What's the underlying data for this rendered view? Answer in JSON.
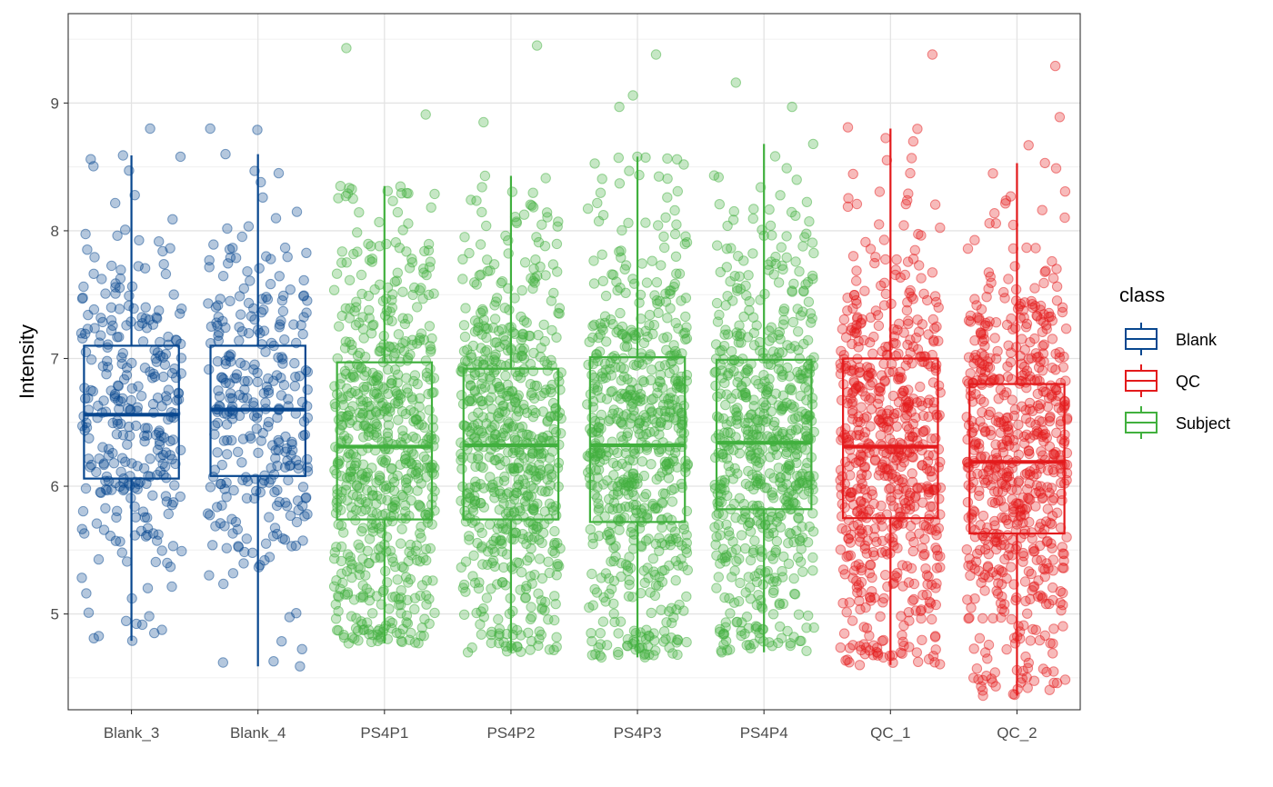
{
  "chart_data": {
    "type": "boxplot",
    "title": "",
    "xlabel": "",
    "ylabel": "Intensity",
    "ylim": [
      4.25,
      9.7
    ],
    "yticks": [
      5,
      6,
      7,
      8,
      9
    ],
    "grid": true,
    "legend_title": "class",
    "legend_position": "right",
    "categories": [
      "Blank_3",
      "Blank_4",
      "PS4P1",
      "PS4P2",
      "PS4P3",
      "PS4P4",
      "QC_1",
      "QC_2"
    ],
    "classes": [
      {
        "name": "Blank",
        "color": "#08478f"
      },
      {
        "name": "QC",
        "color": "#e31a1c"
      },
      {
        "name": "Subject",
        "color": "#41b03e"
      }
    ],
    "boxes": [
      {
        "category": "Blank_3",
        "class": "Blank",
        "whisker_low": 4.79,
        "q1": 6.06,
        "median": 6.56,
        "q3": 7.1,
        "whisker_high": 8.59,
        "n_points": 300
      },
      {
        "category": "Blank_4",
        "class": "Blank",
        "whisker_low": 4.59,
        "q1": 6.08,
        "median": 6.6,
        "q3": 7.1,
        "whisker_high": 8.6,
        "n_points": 300
      },
      {
        "category": "PS4P1",
        "class": "Subject",
        "whisker_low": 4.77,
        "q1": 5.74,
        "median": 6.31,
        "q3": 6.97,
        "whisker_high": 8.35,
        "n_points": 650
      },
      {
        "category": "PS4P2",
        "class": "Subject",
        "whisker_low": 4.7,
        "q1": 5.74,
        "median": 6.32,
        "q3": 6.92,
        "whisker_high": 8.43,
        "n_points": 650
      },
      {
        "category": "PS4P3",
        "class": "Subject",
        "whisker_low": 4.66,
        "q1": 5.72,
        "median": 6.32,
        "q3": 7.01,
        "whisker_high": 8.58,
        "n_points": 650
      },
      {
        "category": "PS4P4",
        "class": "Subject",
        "whisker_low": 4.7,
        "q1": 5.82,
        "median": 6.34,
        "q3": 6.99,
        "whisker_high": 8.68,
        "n_points": 650
      },
      {
        "category": "QC_1",
        "class": "QC",
        "whisker_low": 4.6,
        "q1": 5.75,
        "median": 6.31,
        "q3": 7.0,
        "whisker_high": 8.8,
        "n_points": 650
      },
      {
        "category": "QC_2",
        "class": "QC",
        "whisker_low": 4.36,
        "q1": 5.63,
        "median": 6.19,
        "q3": 6.8,
        "whisker_high": 8.53,
        "n_points": 650
      }
    ],
    "outliers": [
      {
        "category": "Blank_3",
        "values": [
          8.8,
          8.59,
          8.58,
          8.56,
          4.79,
          4.81
        ]
      },
      {
        "category": "Blank_4",
        "values": [
          8.8,
          8.79,
          8.6,
          4.62,
          4.59
        ]
      },
      {
        "category": "PS4P1",
        "values": [
          9.43,
          8.91,
          8.35,
          4.77,
          4.83
        ]
      },
      {
        "category": "PS4P2",
        "values": [
          9.45,
          8.85,
          8.43,
          4.7,
          4.73
        ]
      },
      {
        "category": "PS4P3",
        "values": [
          9.38,
          9.06,
          8.97,
          8.58,
          4.66,
          4.73
        ]
      },
      {
        "category": "PS4P4",
        "values": [
          9.16,
          8.97,
          8.68,
          4.71,
          4.7
        ]
      },
      {
        "category": "QC_1",
        "values": [
          9.38,
          8.81,
          8.7,
          4.6,
          4.69
        ]
      },
      {
        "category": "QC_2",
        "values": [
          9.29,
          8.89,
          8.67,
          8.53,
          4.36,
          4.57
        ]
      }
    ]
  }
}
